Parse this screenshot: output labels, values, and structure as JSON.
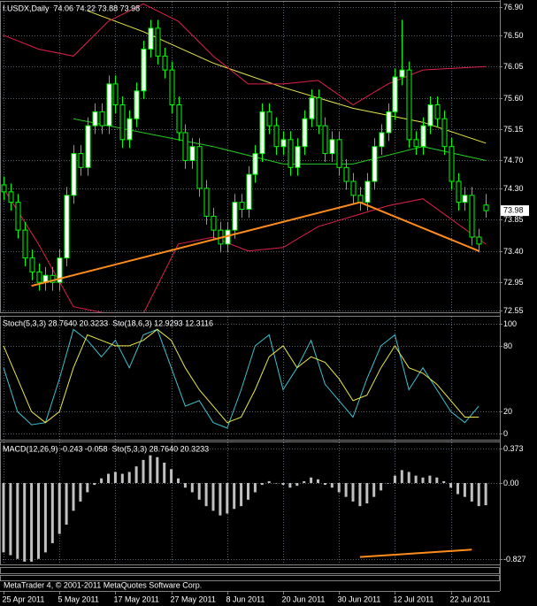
{
  "chart_data": [
    {
      "type": "candlestick",
      "title": "I.USDX,Daily  74.06 74.22 73.88 73.98",
      "open": [
        74.35,
        74.25,
        74.1,
        73.7,
        73.3,
        73.1,
        72.95,
        73.05,
        72.95,
        73.3,
        74.2,
        74.8,
        74.6,
        75.2,
        75.4,
        75.2,
        75.8,
        75.5,
        75.0,
        75.3,
        75.7,
        76.3,
        76.6,
        76.2,
        76.0,
        75.5,
        75.1,
        74.7,
        74.9,
        74.3,
        73.9,
        73.7,
        73.5,
        73.7,
        74.1,
        74.0,
        74.5,
        74.8,
        75.4,
        75.2,
        74.9,
        75.0,
        74.6,
        74.9,
        75.3,
        75.6,
        75.2,
        74.8,
        75.0,
        74.6,
        74.4,
        74.2,
        74.1,
        74.4,
        74.9,
        75.1,
        75.4,
        75.9,
        76.0,
        75.0,
        74.9,
        75.2,
        75.5,
        75.3,
        74.9,
        74.4,
        74.1,
        74.2,
        73.6,
        74.06
      ],
      "high": [
        74.47,
        74.37,
        74.22,
        73.82,
        73.42,
        73.22,
        73.17,
        73.17,
        73.42,
        74.32,
        74.92,
        74.92,
        75.32,
        75.52,
        75.52,
        75.92,
        75.92,
        75.62,
        75.42,
        75.82,
        76.42,
        76.72,
        76.72,
        76.32,
        76.12,
        75.62,
        75.22,
        75.02,
        75.02,
        74.42,
        74.02,
        73.82,
        73.82,
        74.22,
        74.22,
        74.62,
        74.92,
        75.52,
        75.52,
        75.32,
        75.12,
        75.12,
        75.02,
        75.42,
        75.72,
        75.72,
        75.32,
        75.12,
        75.12,
        74.72,
        74.52,
        74.32,
        74.52,
        75.02,
        75.22,
        75.52,
        76.02,
        76.72,
        76.12,
        75.12,
        75.32,
        75.62,
        75.62,
        75.42,
        75.02,
        74.52,
        74.32,
        74.32,
        73.72,
        74.22
      ],
      "low": [
        74.13,
        73.98,
        73.58,
        73.18,
        72.98,
        72.83,
        72.83,
        72.83,
        72.83,
        73.18,
        74.08,
        74.48,
        74.48,
        75.08,
        75.08,
        75.08,
        75.38,
        74.88,
        74.88,
        75.18,
        75.58,
        76.18,
        76.08,
        75.88,
        75.38,
        74.98,
        74.58,
        74.58,
        74.18,
        73.78,
        73.58,
        73.38,
        73.38,
        73.58,
        73.88,
        73.88,
        74.38,
        74.68,
        75.08,
        74.78,
        74.78,
        74.48,
        74.48,
        74.78,
        75.18,
        75.08,
        74.68,
        74.68,
        74.48,
        74.28,
        74.08,
        73.98,
        73.98,
        74.28,
        74.78,
        74.98,
        75.28,
        75.78,
        74.88,
        74.78,
        74.78,
        75.08,
        75.18,
        74.78,
        74.28,
        73.98,
        73.98,
        73.48,
        73.38,
        73.88
      ],
      "close": [
        74.25,
        74.1,
        73.7,
        73.3,
        73.1,
        72.95,
        73.05,
        72.95,
        73.3,
        74.2,
        74.8,
        74.6,
        75.2,
        75.4,
        75.2,
        75.8,
        75.5,
        75.0,
        75.3,
        75.7,
        76.3,
        76.6,
        76.2,
        76.0,
        75.5,
        75.1,
        74.7,
        74.9,
        74.3,
        73.9,
        73.7,
        73.5,
        73.7,
        74.1,
        74.0,
        74.5,
        74.8,
        75.4,
        75.2,
        74.9,
        75.0,
        74.6,
        74.9,
        75.3,
        75.6,
        75.2,
        74.8,
        75.0,
        74.6,
        74.4,
        74.2,
        74.1,
        74.4,
        74.9,
        75.1,
        75.4,
        75.9,
        76.0,
        75.0,
        74.9,
        75.2,
        75.5,
        75.3,
        74.9,
        74.4,
        74.1,
        74.2,
        73.6,
        73.5,
        73.98
      ],
      "up_color": "#ffffff",
      "down_color": "#000000",
      "wick_color": "#00ff00",
      "ylim": [
        72.52,
        76.98
      ],
      "yticks": [
        {
          "value": 76.9,
          "label": "76.90"
        },
        {
          "value": 76.5,
          "label": "76.50"
        },
        76.05,
        {
          "value": 75.6,
          "label": "75.60"
        },
        75.15,
        {
          "value": 74.7,
          "label": "74.70"
        },
        {
          "value": 74.3,
          "label": "74.30"
        },
        73.85,
        {
          "value": 73.4,
          "label": "73.40"
        },
        72.95,
        72.55
      ],
      "xticks": [
        {
          "value": 0,
          "label": "25 Apr 2011"
        },
        {
          "value": 8,
          "label": "5 May 2011"
        },
        {
          "value": 16,
          "label": "17 May 2011"
        },
        {
          "value": 24,
          "label": "27 May 2011"
        },
        {
          "value": 32,
          "label": "8 Jun 2011"
        },
        {
          "value": 40,
          "label": "20 Jun 2011"
        },
        {
          "value": 48,
          "label": "30 Jun 2011"
        },
        {
          "value": 56,
          "label": "12 Jul 2011"
        },
        {
          "value": 64,
          "label": "22 Jul 2011"
        }
      ],
      "grid": true,
      "overlays": [
        {
          "color": "#e8e84a",
          "x": [
            12,
            20,
            30,
            40,
            50,
            60,
            69
          ],
          "values": [
            76.85,
            76.55,
            76.1,
            75.75,
            75.45,
            75.25,
            74.95
          ]
        },
        {
          "color": "#22cc22",
          "x": [
            10,
            20,
            30,
            40,
            50,
            60,
            69
          ],
          "values": [
            75.3,
            75.1,
            74.9,
            74.65,
            74.65,
            74.9,
            74.7
          ]
        },
        {
          "color": "#e0204a",
          "x": [
            0,
            5,
            10,
            15,
            20,
            25,
            30,
            35,
            40,
            45,
            50,
            55,
            60,
            69
          ],
          "values": [
            76.5,
            76.3,
            76.2,
            76.7,
            76.95,
            76.7,
            76.2,
            75.8,
            75.8,
            75.85,
            75.5,
            75.8,
            76.0,
            76.05
          ]
        },
        {
          "color": "#e0204a",
          "x": [
            0,
            5,
            10,
            15,
            20,
            25,
            30,
            35,
            40,
            45,
            50,
            55,
            60,
            69
          ],
          "values": [
            74.3,
            73.5,
            72.6,
            72.5,
            72.5,
            73.5,
            73.6,
            73.4,
            73.45,
            73.75,
            73.9,
            74.05,
            74.15,
            73.5
          ]
        }
      ],
      "trendlines": [
        {
          "x": [
            4,
            51
          ],
          "y": [
            72.9,
            74.1
          ],
          "color": "#ff8c1a"
        },
        {
          "x": [
            51,
            68
          ],
          "y": [
            74.1,
            73.4
          ],
          "color": "#ff8c1a"
        }
      ]
    },
    {
      "type": "line",
      "title": "Stoch(5,3,3) 28.7640 20.3233  Sto(18,6,3) 12.9293 12.3116",
      "ylim": [
        -5.6,
        106.5
      ],
      "yticks": [
        100,
        80,
        20,
        0
      ],
      "grid": true,
      "x": [
        0,
        2,
        4,
        6,
        8,
        10,
        12,
        14,
        16,
        18,
        20,
        22,
        24,
        26,
        28,
        30,
        32,
        34,
        36,
        38,
        40,
        42,
        44,
        46,
        48,
        50,
        52,
        54,
        56,
        58,
        60,
        62,
        64,
        66,
        68
      ],
      "series": [
        {
          "color": "#40c0d0",
          "values": [
            60,
            20,
            8,
            10,
            50,
            95,
            85,
            70,
            85,
            60,
            90,
            95,
            60,
            25,
            30,
            10,
            5,
            40,
            80,
            90,
            40,
            60,
            85,
            45,
            30,
            15,
            50,
            80,
            90,
            40,
            60,
            40,
            20,
            10,
            25
          ]
        },
        {
          "color": "#e8e84a",
          "values": [
            80,
            50,
            20,
            10,
            20,
            60,
            90,
            85,
            80,
            80,
            85,
            95,
            85,
            60,
            40,
            25,
            10,
            15,
            40,
            70,
            80,
            60,
            70,
            65,
            50,
            30,
            35,
            60,
            80,
            60,
            55,
            45,
            30,
            15,
            15
          ]
        }
      ]
    },
    {
      "type": "bar",
      "title": "MACD(12,26,9) -0.243 -0.058  Sto(5,3,3) 28.7640 20.3233",
      "ylim": [
        -0.88,
        0.44
      ],
      "yticks": [
        0.373,
        {
          "value": 0,
          "label": "0.00"
        },
        -0.827
      ],
      "grid": true,
      "color": "#c0c0c0",
      "values": [
        -0.75,
        -0.78,
        -0.82,
        -0.85,
        -0.85,
        -0.82,
        -0.75,
        -0.65,
        -0.55,
        -0.45,
        -0.3,
        -0.2,
        -0.1,
        -0.02,
        0.05,
        0.1,
        0.12,
        0.1,
        0.12,
        0.18,
        0.25,
        0.3,
        0.28,
        0.22,
        0.15,
        0.05,
        -0.05,
        -0.1,
        -0.18,
        -0.25,
        -0.3,
        -0.35,
        -0.33,
        -0.28,
        -0.25,
        -0.18,
        -0.1,
        -0.02,
        0.02,
        0.0,
        -0.02,
        -0.05,
        -0.03,
        0.02,
        0.06,
        0.04,
        -0.02,
        -0.05,
        -0.1,
        -0.15,
        -0.2,
        -0.25,
        -0.22,
        -0.15,
        -0.08,
        0.0,
        0.08,
        0.14,
        0.12,
        0.08,
        0.06,
        0.08,
        0.06,
        0.02,
        -0.05,
        -0.12,
        -0.15,
        -0.2,
        -0.25,
        -0.24
      ],
      "trendlines": [
        {
          "x": [
            51,
            67
          ],
          "y": [
            -0.8,
            -0.72
          ],
          "color": "#ff8c1a"
        }
      ]
    }
  ],
  "footer": "MetaTrader 4, © 2001-2011 MetaQuotes Software Corp."
}
